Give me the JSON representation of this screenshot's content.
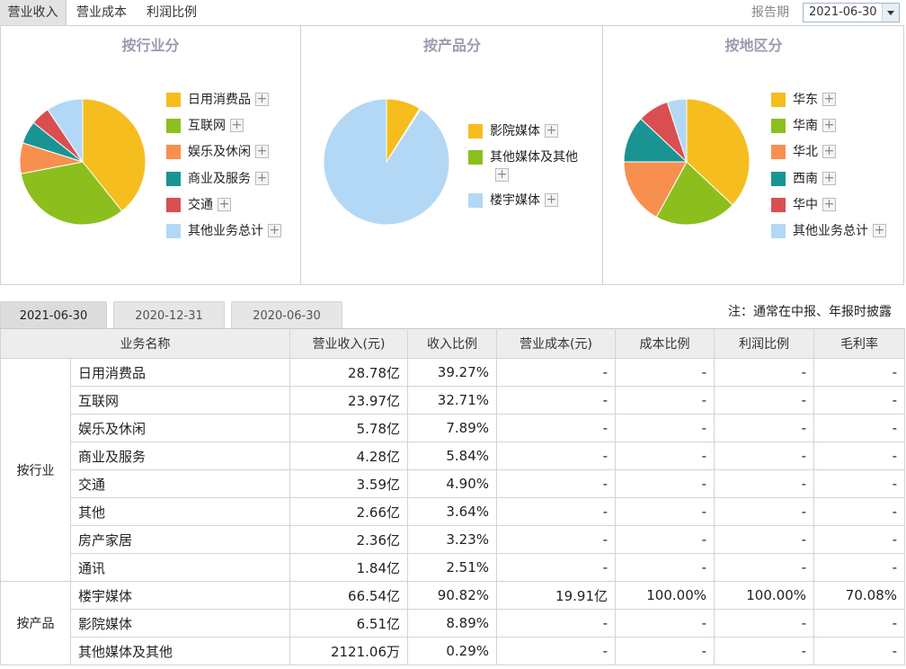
{
  "top_tabs": [
    "营业收入",
    "营业成本",
    "利润比例"
  ],
  "report_period": {
    "label": "报告期",
    "selected": "2021-06-30"
  },
  "panels": [
    {
      "title": "按行业分",
      "legend": [
        "日用消费品",
        "互联网",
        "娱乐及休闲",
        "商业及服务",
        "交通",
        "其他业务总计"
      ],
      "slices": [
        39.27,
        32.71,
        7.89,
        5.84,
        4.9,
        9.39
      ],
      "colors": [
        "#f5be1e",
        "#8cbf1e",
        "#f7904f",
        "#1a9493",
        "#d94f51",
        "#b2d8f5"
      ]
    },
    {
      "title": "按产品分",
      "legend": [
        "影院媒体",
        "其他媒体及其他",
        "楼宇媒体"
      ],
      "slices": [
        8.89,
        0.29,
        90.82
      ],
      "colors": [
        "#f5be1e",
        "#8cbf1e",
        "#b2d8f5"
      ]
    },
    {
      "title": "按地区分",
      "legend": [
        "华东",
        "华南",
        "华北",
        "西南",
        "华中",
        "其他业务总计"
      ],
      "slices": [
        37,
        21,
        17,
        12,
        8,
        5
      ],
      "colors": [
        "#f5be1e",
        "#8cbf1e",
        "#f7904f",
        "#1a9493",
        "#d94f51",
        "#b2d8f5"
      ]
    }
  ],
  "plus_glyph": "+",
  "period_tabs": [
    "2021-06-30",
    "2020-12-31",
    "2020-06-30"
  ],
  "note": "注：通常在中报、年报时披露",
  "table": {
    "headers": [
      "业务名称",
      "营业收入(元)",
      "收入比例",
      "营业成本(元)",
      "成本比例",
      "利润比例",
      "毛利率"
    ],
    "groups": [
      {
        "name": "按行业",
        "rows": [
          [
            "日用消费品",
            "28.78亿",
            "39.27%",
            "-",
            "-",
            "-",
            "-"
          ],
          [
            "互联网",
            "23.97亿",
            "32.71%",
            "-",
            "-",
            "-",
            "-"
          ],
          [
            "娱乐及休闲",
            "5.78亿",
            "7.89%",
            "-",
            "-",
            "-",
            "-"
          ],
          [
            "商业及服务",
            "4.28亿",
            "5.84%",
            "-",
            "-",
            "-",
            "-"
          ],
          [
            "交通",
            "3.59亿",
            "4.90%",
            "-",
            "-",
            "-",
            "-"
          ],
          [
            "其他",
            "2.66亿",
            "3.64%",
            "-",
            "-",
            "-",
            "-"
          ],
          [
            "房产家居",
            "2.36亿",
            "3.23%",
            "-",
            "-",
            "-",
            "-"
          ],
          [
            "通讯",
            "1.84亿",
            "2.51%",
            "-",
            "-",
            "-",
            "-"
          ]
        ]
      },
      {
        "name": "按产品",
        "rows": [
          [
            "楼宇媒体",
            "66.54亿",
            "90.82%",
            "19.91亿",
            "100.00%",
            "100.00%",
            "70.08%"
          ],
          [
            "影院媒体",
            "6.51亿",
            "8.89%",
            "-",
            "-",
            "-",
            "-"
          ],
          [
            "其他媒体及其他",
            "2121.06万",
            "0.29%",
            "-",
            "-",
            "-",
            "-"
          ]
        ]
      }
    ]
  }
}
